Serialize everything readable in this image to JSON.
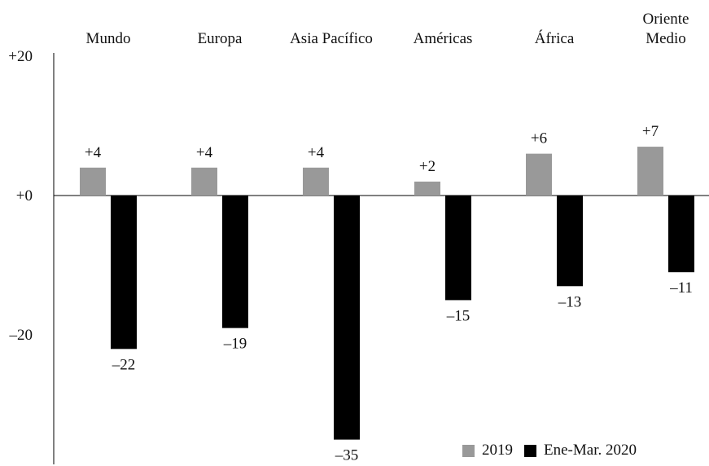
{
  "chart_data": {
    "type": "bar",
    "categories": [
      "Mundo",
      "Europa",
      "Asia Pacífico",
      "Américas",
      "África",
      "Oriente Medio"
    ],
    "category_label_lines": [
      [
        "Mundo"
      ],
      [
        "Europa"
      ],
      [
        "Asia Pacífico"
      ],
      [
        "Américas"
      ],
      [
        "África"
      ],
      [
        "Oriente",
        "Medio"
      ]
    ],
    "series": [
      {
        "name": "2019",
        "color": "#999999",
        "values": [
          4,
          4,
          4,
          2,
          6,
          7
        ],
        "labels": [
          "+4",
          "+4",
          "+4",
          "+2",
          "+6",
          "+7"
        ]
      },
      {
        "name": "Ene-Mar. 2020",
        "color": "#000000",
        "values": [
          -22,
          -19,
          -35,
          -15,
          -13,
          -11
        ],
        "labels": [
          "–22",
          "–19",
          "–35",
          "–15",
          "–13",
          "–11"
        ]
      }
    ],
    "y_tick_values": [
      20,
      0,
      -20
    ],
    "y_tick_labels": [
      "+20",
      "+0",
      "–20"
    ],
    "ylim": [
      -37,
      20
    ],
    "legend_position": "bottom-right",
    "grid": false
  }
}
